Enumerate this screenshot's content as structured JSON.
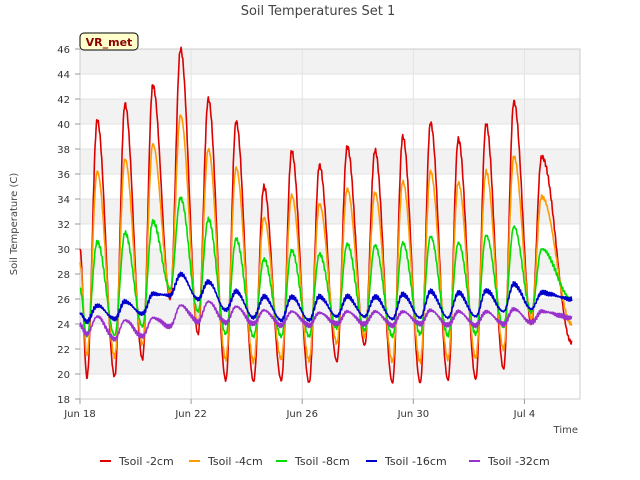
{
  "chart_data": {
    "type": "line",
    "title": "Soil Temperatures Set 1",
    "xlabel": "Time",
    "ylabel": "Soil Temperature (C)",
    "badge": "VR_met",
    "ylim": [
      18,
      46
    ],
    "yticks": [
      "18",
      "20",
      "22",
      "24",
      "26",
      "28",
      "30",
      "32",
      "34",
      "36",
      "38",
      "40",
      "42",
      "44",
      "46"
    ],
    "xlim_days": [
      0,
      18
    ],
    "xticks": [
      {
        "day": 0,
        "label": "Jun 18"
      },
      {
        "day": 4,
        "label": "Jun 22"
      },
      {
        "day": 8,
        "label": "Jun 26"
      },
      {
        "day": 12,
        "label": "Jun 30"
      },
      {
        "day": 16,
        "label": "Jul 4"
      }
    ],
    "grid": true,
    "legend_position": "bottom",
    "series": [
      {
        "name": "Tsoil -2cm",
        "color": "#dd0000",
        "daily_max": [
          40.3,
          41.6,
          43.1,
          46.0,
          42.0,
          40.2,
          35.0,
          37.8,
          36.7,
          38.2,
          37.9,
          39.0,
          40.1,
          38.8,
          40.0,
          41.8,
          37.4
        ],
        "daily_min": [
          19.7,
          19.8,
          21.2,
          26.0,
          23.2,
          19.5,
          19.4,
          19.5,
          19.3,
          21.0,
          22.3,
          19.3,
          19.3,
          19.5,
          19.6,
          20.4,
          24.0
        ],
        "end": 22.5
      },
      {
        "name": "Tsoil -4cm",
        "color": "#ff9900",
        "daily_max": [
          36.2,
          37.2,
          38.4,
          40.7,
          38.0,
          36.5,
          32.5,
          34.3,
          33.6,
          34.8,
          34.5,
          35.4,
          36.2,
          35.3,
          36.2,
          37.4,
          34.2
        ],
        "daily_min": [
          21.5,
          21.4,
          22.4,
          26.5,
          24.0,
          21.2,
          21.0,
          21.2,
          21.1,
          22.5,
          23.0,
          21.0,
          21.0,
          21.2,
          21.3,
          22.0,
          24.5
        ],
        "end": 24.0
      },
      {
        "name": "Tsoil -8cm",
        "color": "#00dd00",
        "daily_max": [
          30.6,
          31.3,
          32.2,
          34.1,
          32.4,
          30.8,
          29.2,
          29.9,
          29.6,
          30.4,
          30.3,
          30.5,
          31.0,
          30.5,
          31.1,
          31.8,
          30.0
        ],
        "daily_min": [
          23.0,
          23.1,
          23.8,
          26.8,
          25.0,
          23.2,
          23.0,
          23.0,
          23.0,
          23.7,
          23.5,
          23.0,
          23.2,
          23.1,
          23.2,
          23.8,
          25.0
        ],
        "end": 26.0
      },
      {
        "name": "Tsoil -16cm",
        "color": "#0000cc",
        "daily_max": [
          25.5,
          25.8,
          26.4,
          28.0,
          27.4,
          26.6,
          26.2,
          26.2,
          26.2,
          26.2,
          26.2,
          26.4,
          26.6,
          26.5,
          26.7,
          27.2,
          26.5
        ],
        "daily_min": [
          24.2,
          24.4,
          24.8,
          26.3,
          26.0,
          25.1,
          24.5,
          24.3,
          24.3,
          24.6,
          24.6,
          24.4,
          24.5,
          24.5,
          24.6,
          25.0,
          25.2
        ],
        "end": 26.0
      },
      {
        "name": "Tsoil -32cm",
        "color": "#9933cc",
        "daily_max": [
          24.6,
          24.3,
          24.5,
          25.5,
          25.8,
          25.4,
          25.1,
          25.0,
          24.9,
          25.0,
          25.0,
          25.0,
          25.1,
          25.0,
          25.0,
          25.2,
          25.0
        ],
        "daily_min": [
          23.2,
          22.8,
          23.0,
          23.8,
          24.2,
          24.1,
          24.0,
          23.9,
          23.9,
          24.0,
          24.0,
          23.9,
          24.0,
          23.9,
          23.9,
          24.0,
          24.1
        ],
        "end": 24.5
      }
    ]
  }
}
